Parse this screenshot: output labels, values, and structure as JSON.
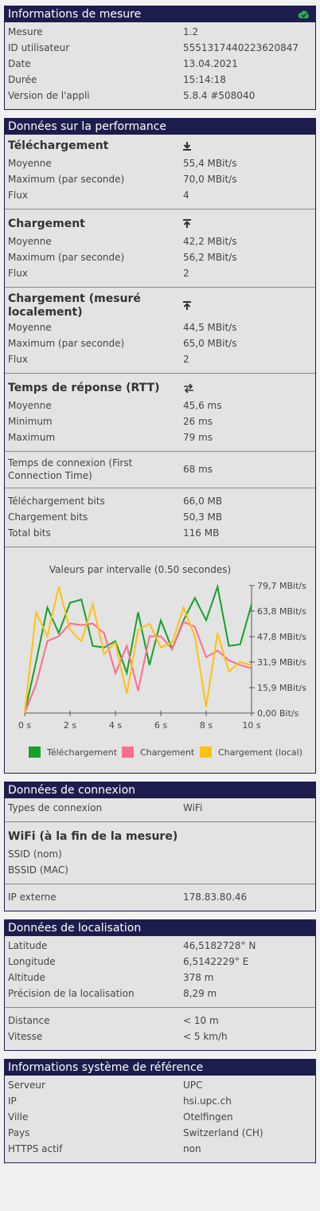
{
  "sections": [
    {
      "title": "Informations de mesure",
      "groups": [
        {
          "rows": [
            {
              "label": "Mesure",
              "value": "1.2"
            },
            {
              "label": "ID utilisateur",
              "value": "5551317440223620847"
            },
            {
              "label": "Date",
              "value": "13.04.2021"
            },
            {
              "label": "Durée",
              "value": "15:14:18"
            },
            {
              "label": "Version de l'appli",
              "value": "5.8.4 #508040"
            }
          ]
        }
      ]
    },
    {
      "title": "Données sur la performance",
      "groups": [
        {
          "heading": "Téléchargement",
          "rows": [
            {
              "label": "Moyenne",
              "value": "55,4 MBit/s"
            },
            {
              "label": "Maximum (par seconde)",
              "value": "70,0 MBit/s"
            },
            {
              "label": "Flux",
              "value": "4"
            }
          ]
        },
        {
          "heading": "Chargement",
          "rows": [
            {
              "label": "Moyenne",
              "value": "42,2 MBit/s"
            },
            {
              "label": "Maximum (par seconde)",
              "value": "56,2 MBit/s"
            },
            {
              "label": "Flux",
              "value": "2"
            }
          ]
        },
        {
          "heading": "Chargement (mesuré localement)",
          "rows": [
            {
              "label": "Moyenne",
              "value": "44,5 MBit/s"
            },
            {
              "label": "Maximum (par seconde)",
              "value": "65,0 MBit/s"
            },
            {
              "label": "Flux",
              "value": "2"
            }
          ]
        },
        {
          "heading": "Temps de réponse (RTT)",
          "rows": [
            {
              "label": "Moyenne",
              "value": "45,6 ms"
            },
            {
              "label": "Minimum",
              "value": "26 ms"
            },
            {
              "label": "Maximum",
              "value": "79 ms"
            }
          ]
        },
        {
          "rows": [
            {
              "label": "Temps de connexion (First Connection Time)",
              "value": "68 ms"
            }
          ]
        },
        {
          "rows": [
            {
              "label": "Téléchargement bits",
              "value": "66,0 MB"
            },
            {
              "label": "Chargement bits",
              "value": "50,3 MB"
            },
            {
              "label": "Total bits",
              "value": "116 MB"
            }
          ]
        }
      ]
    },
    {
      "title": "Données de connexion",
      "groups": [
        {
          "rows": [
            {
              "label": "Types de connexion",
              "value": "WiFi"
            }
          ]
        },
        {
          "heading": "WiFi (à la fin de la mesure)",
          "rows": [
            {
              "label": "SSID (nom)"
            },
            {
              "label": "BSSID (MAC)"
            }
          ]
        },
        {
          "rows": [
            {
              "label": "IP externe",
              "value": "178.83.80.46"
            }
          ]
        }
      ]
    },
    {
      "title": "Données de localisation",
      "groups": [
        {
          "rows": [
            {
              "label": "Latitude",
              "value": "46,5182728° N"
            },
            {
              "label": "Longitude",
              "value": "6,5142229° E"
            },
            {
              "label": "Altitude",
              "value": "378 m"
            },
            {
              "label": "Précision de la localisation",
              "value": "8,29 m"
            }
          ]
        },
        {
          "rows": [
            {
              "label": "Distance",
              "value": "< 10 m"
            },
            {
              "label": "Vitesse",
              "value": "< 5 km/h"
            }
          ]
        }
      ]
    },
    {
      "title": "Informations système de référence",
      "groups": [
        {
          "rows": [
            {
              "label": "Serveur",
              "value": "UPC"
            },
            {
              "label": "IP",
              "value": "hsi.upc.ch"
            },
            {
              "label": "Ville",
              "value": "Otelfingen"
            },
            {
              "label": "Pays",
              "value": "Switzerland (CH)"
            },
            {
              "label": "HTTPS actif",
              "value": "non"
            }
          ]
        }
      ]
    }
  ],
  "chart_data": {
    "type": "line",
    "title": "Valeurs par intervalle (0.50 secondes)",
    "x": [
      0,
      0.5,
      1,
      1.5,
      2,
      2.5,
      3,
      3.5,
      4,
      4.5,
      5,
      5.5,
      6,
      6.5,
      7,
      7.5,
      8,
      8.5,
      9,
      9.5,
      10
    ],
    "series": [
      {
        "name": "Téléchargement",
        "color": "#16a02a",
        "values": [
          0,
          32,
          66,
          50,
          69,
          71,
          42,
          41,
          45,
          25,
          63,
          30,
          58,
          40,
          58,
          72,
          58,
          79,
          42,
          43,
          68
        ]
      },
      {
        "name": "Chargement",
        "color": "#ff6c8e",
        "values": [
          0,
          18,
          45,
          48,
          56,
          55,
          56,
          50,
          25,
          42,
          14,
          48,
          48,
          40,
          57,
          54,
          35,
          39,
          33,
          30,
          28
        ]
      },
      {
        "name": "Chargement (local)",
        "color": "#ffc20e",
        "values": [
          0,
          63,
          48,
          79,
          52,
          45,
          68,
          37,
          44,
          12,
          52,
          56,
          41,
          44,
          66,
          48,
          4,
          50,
          26,
          32,
          30
        ]
      }
    ],
    "xlim": [
      0,
      10
    ],
    "xticks": [
      {
        "value": 0,
        "label": "0 s"
      },
      {
        "value": 2,
        "label": "2 s"
      },
      {
        "value": 4,
        "label": "4 s"
      },
      {
        "value": 6,
        "label": "6 s"
      },
      {
        "value": 8,
        "label": "8 s"
      },
      {
        "value": 10,
        "label": "10 s"
      }
    ],
    "ylim": [
      0,
      79.7
    ],
    "yticks": [
      {
        "value": 0,
        "label": "0,00 Bit/s"
      },
      {
        "value": 15.9,
        "label": "15,9 MBit/s"
      },
      {
        "value": 31.9,
        "label": "31,9 MBit/s"
      },
      {
        "value": 47.8,
        "label": "47,8 MBit/s"
      },
      {
        "value": 63.8,
        "label": "63,8 MBit/s"
      },
      {
        "value": 79.7,
        "label": "79,7 MBit/s"
      }
    ]
  }
}
